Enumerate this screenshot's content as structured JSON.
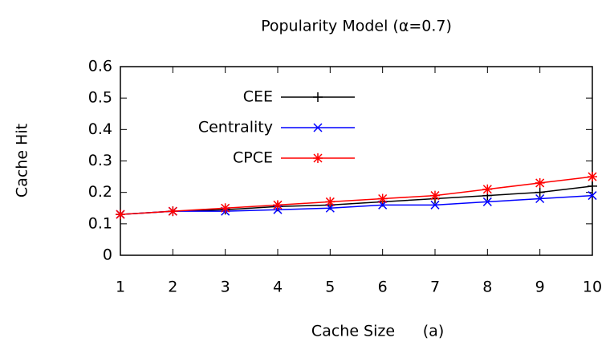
{
  "chart_data": {
    "type": "line",
    "title": "Popularity Model (α=0.7)",
    "xlabel": "Cache Size",
    "annotation": "(a)",
    "ylabel": "Cache Hit",
    "x": [
      1,
      2,
      3,
      4,
      5,
      6,
      7,
      8,
      9,
      10
    ],
    "series": [
      {
        "name": "CEE",
        "color": "#000000",
        "marker": "plus",
        "values": [
          0.13,
          0.14,
          0.145,
          0.155,
          0.16,
          0.17,
          0.18,
          0.19,
          0.2,
          0.22
        ]
      },
      {
        "name": "Centrality",
        "color": "#0000ff",
        "marker": "cross",
        "values": [
          0.13,
          0.14,
          0.14,
          0.145,
          0.15,
          0.16,
          0.16,
          0.17,
          0.18,
          0.19
        ]
      },
      {
        "name": "CPCE",
        "color": "#ff0000",
        "marker": "star",
        "values": [
          0.13,
          0.14,
          0.15,
          0.16,
          0.17,
          0.18,
          0.19,
          0.21,
          0.23,
          0.25
        ]
      }
    ],
    "xlim": [
      1,
      10
    ],
    "xticks": [
      1,
      2,
      3,
      4,
      5,
      6,
      7,
      8,
      9,
      10
    ],
    "ylim": [
      0,
      0.6
    ],
    "yticks": [
      0,
      0.1,
      0.2,
      0.3,
      0.4,
      0.5,
      0.6
    ],
    "legend": "upper left"
  }
}
